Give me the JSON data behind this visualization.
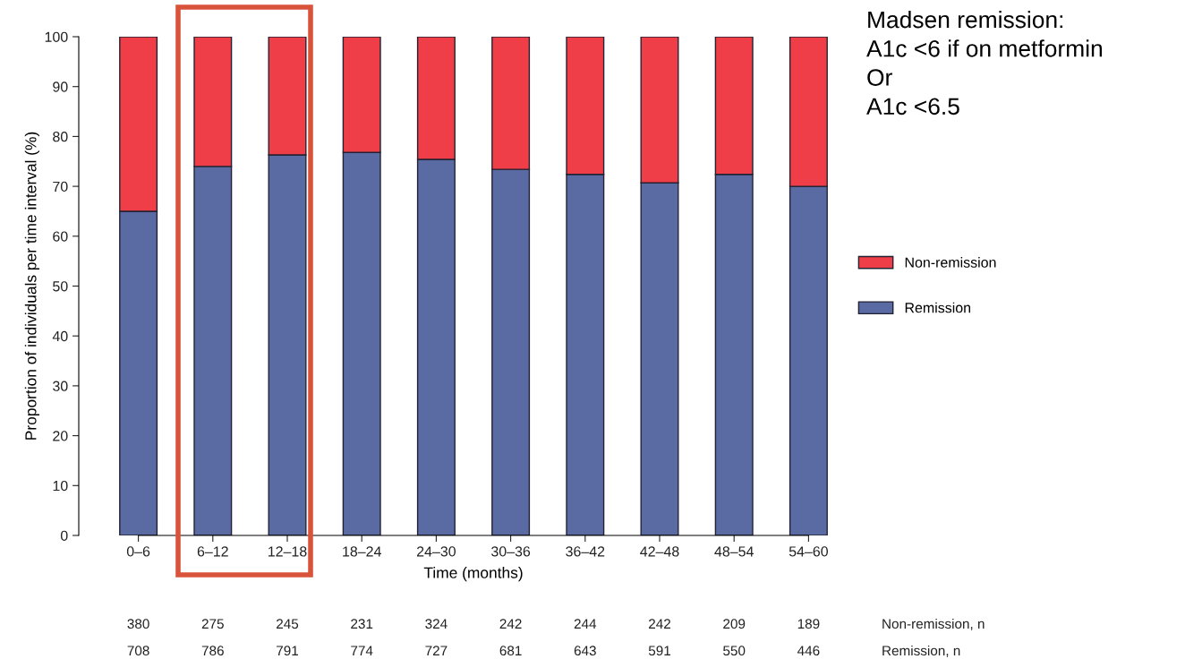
{
  "chart_data": {
    "type": "bar",
    "stacked": true,
    "xlabel": "Time (months)",
    "ylabel": "Proportion of individuals per time interval (%)",
    "categories": [
      "0–6",
      "6–12",
      "12–18",
      "18–24",
      "24–30",
      "30–36",
      "36–42",
      "42–48",
      "48–54",
      "54–60"
    ],
    "series": [
      {
        "name": "Remission",
        "color": "#5a6aa3",
        "values": [
          65.0,
          74.0,
          76.3,
          76.8,
          75.4,
          73.4,
          72.4,
          70.7,
          72.4,
          70.0
        ]
      },
      {
        "name": "Non-remission",
        "color": "#ef3e47",
        "values": [
          35.0,
          26.0,
          23.7,
          23.2,
          24.6,
          26.6,
          27.6,
          29.3,
          27.6,
          30.0
        ]
      }
    ],
    "ylim": [
      0,
      100
    ],
    "yticks": [
      0,
      10,
      20,
      30,
      40,
      50,
      60,
      70,
      80,
      90,
      100
    ],
    "grid": false,
    "legend": "right",
    "annotations": [
      "Non-remission, n",
      "380",
      "275",
      "245",
      "231",
      "324",
      "242",
      "244",
      "242",
      "209",
      "189",
      "Remission, n",
      "708",
      "786",
      "791",
      "774",
      "727",
      "681",
      "643",
      "591",
      "550",
      "446",
      "Madsen remission:\nA1c <6 if on metformin\nOr\nA1c <6.5"
    ]
  }
}
